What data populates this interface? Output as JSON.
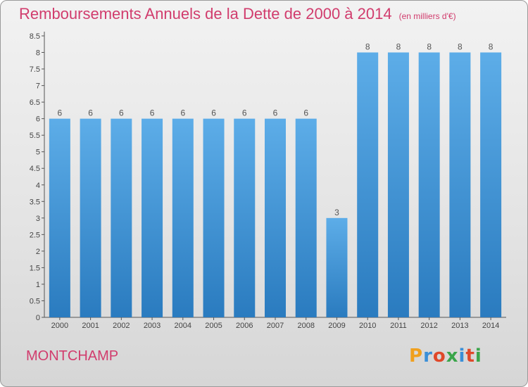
{
  "header": {
    "title": "Remboursements Annuels de la Dette de 2000 à 2014",
    "subtitle": "(en milliers d'€)"
  },
  "footer": {
    "commune": "MONTCHAMP",
    "logo_text": "Proxiti"
  },
  "colors": {
    "bar_top": "#5dade8",
    "bar_bottom": "#2a7bbf",
    "accent": "#d13c6d"
  },
  "chart_data": {
    "type": "bar",
    "categories": [
      "2000",
      "2001",
      "2002",
      "2003",
      "2004",
      "2005",
      "2006",
      "2007",
      "2008",
      "2009",
      "2010",
      "2011",
      "2012",
      "2013",
      "2014"
    ],
    "values": [
      6,
      6,
      6,
      6,
      6,
      6,
      6,
      6,
      6,
      3,
      8,
      8,
      8,
      8,
      8
    ],
    "data_labels": [
      "6",
      "6",
      "6",
      "6",
      "6",
      "6",
      "6",
      "6",
      "6",
      "3",
      "8",
      "8",
      "8",
      "8",
      "8"
    ],
    "yticks": [
      "0",
      "0.5",
      "1",
      "1.5",
      "2",
      "2.5",
      "3",
      "3.5",
      "4",
      "4.5",
      "5",
      "5.5",
      "6",
      "6.5",
      "7",
      "7.5",
      "8",
      "8.5"
    ],
    "ylim": [
      0,
      8.5
    ],
    "grid": false
  }
}
